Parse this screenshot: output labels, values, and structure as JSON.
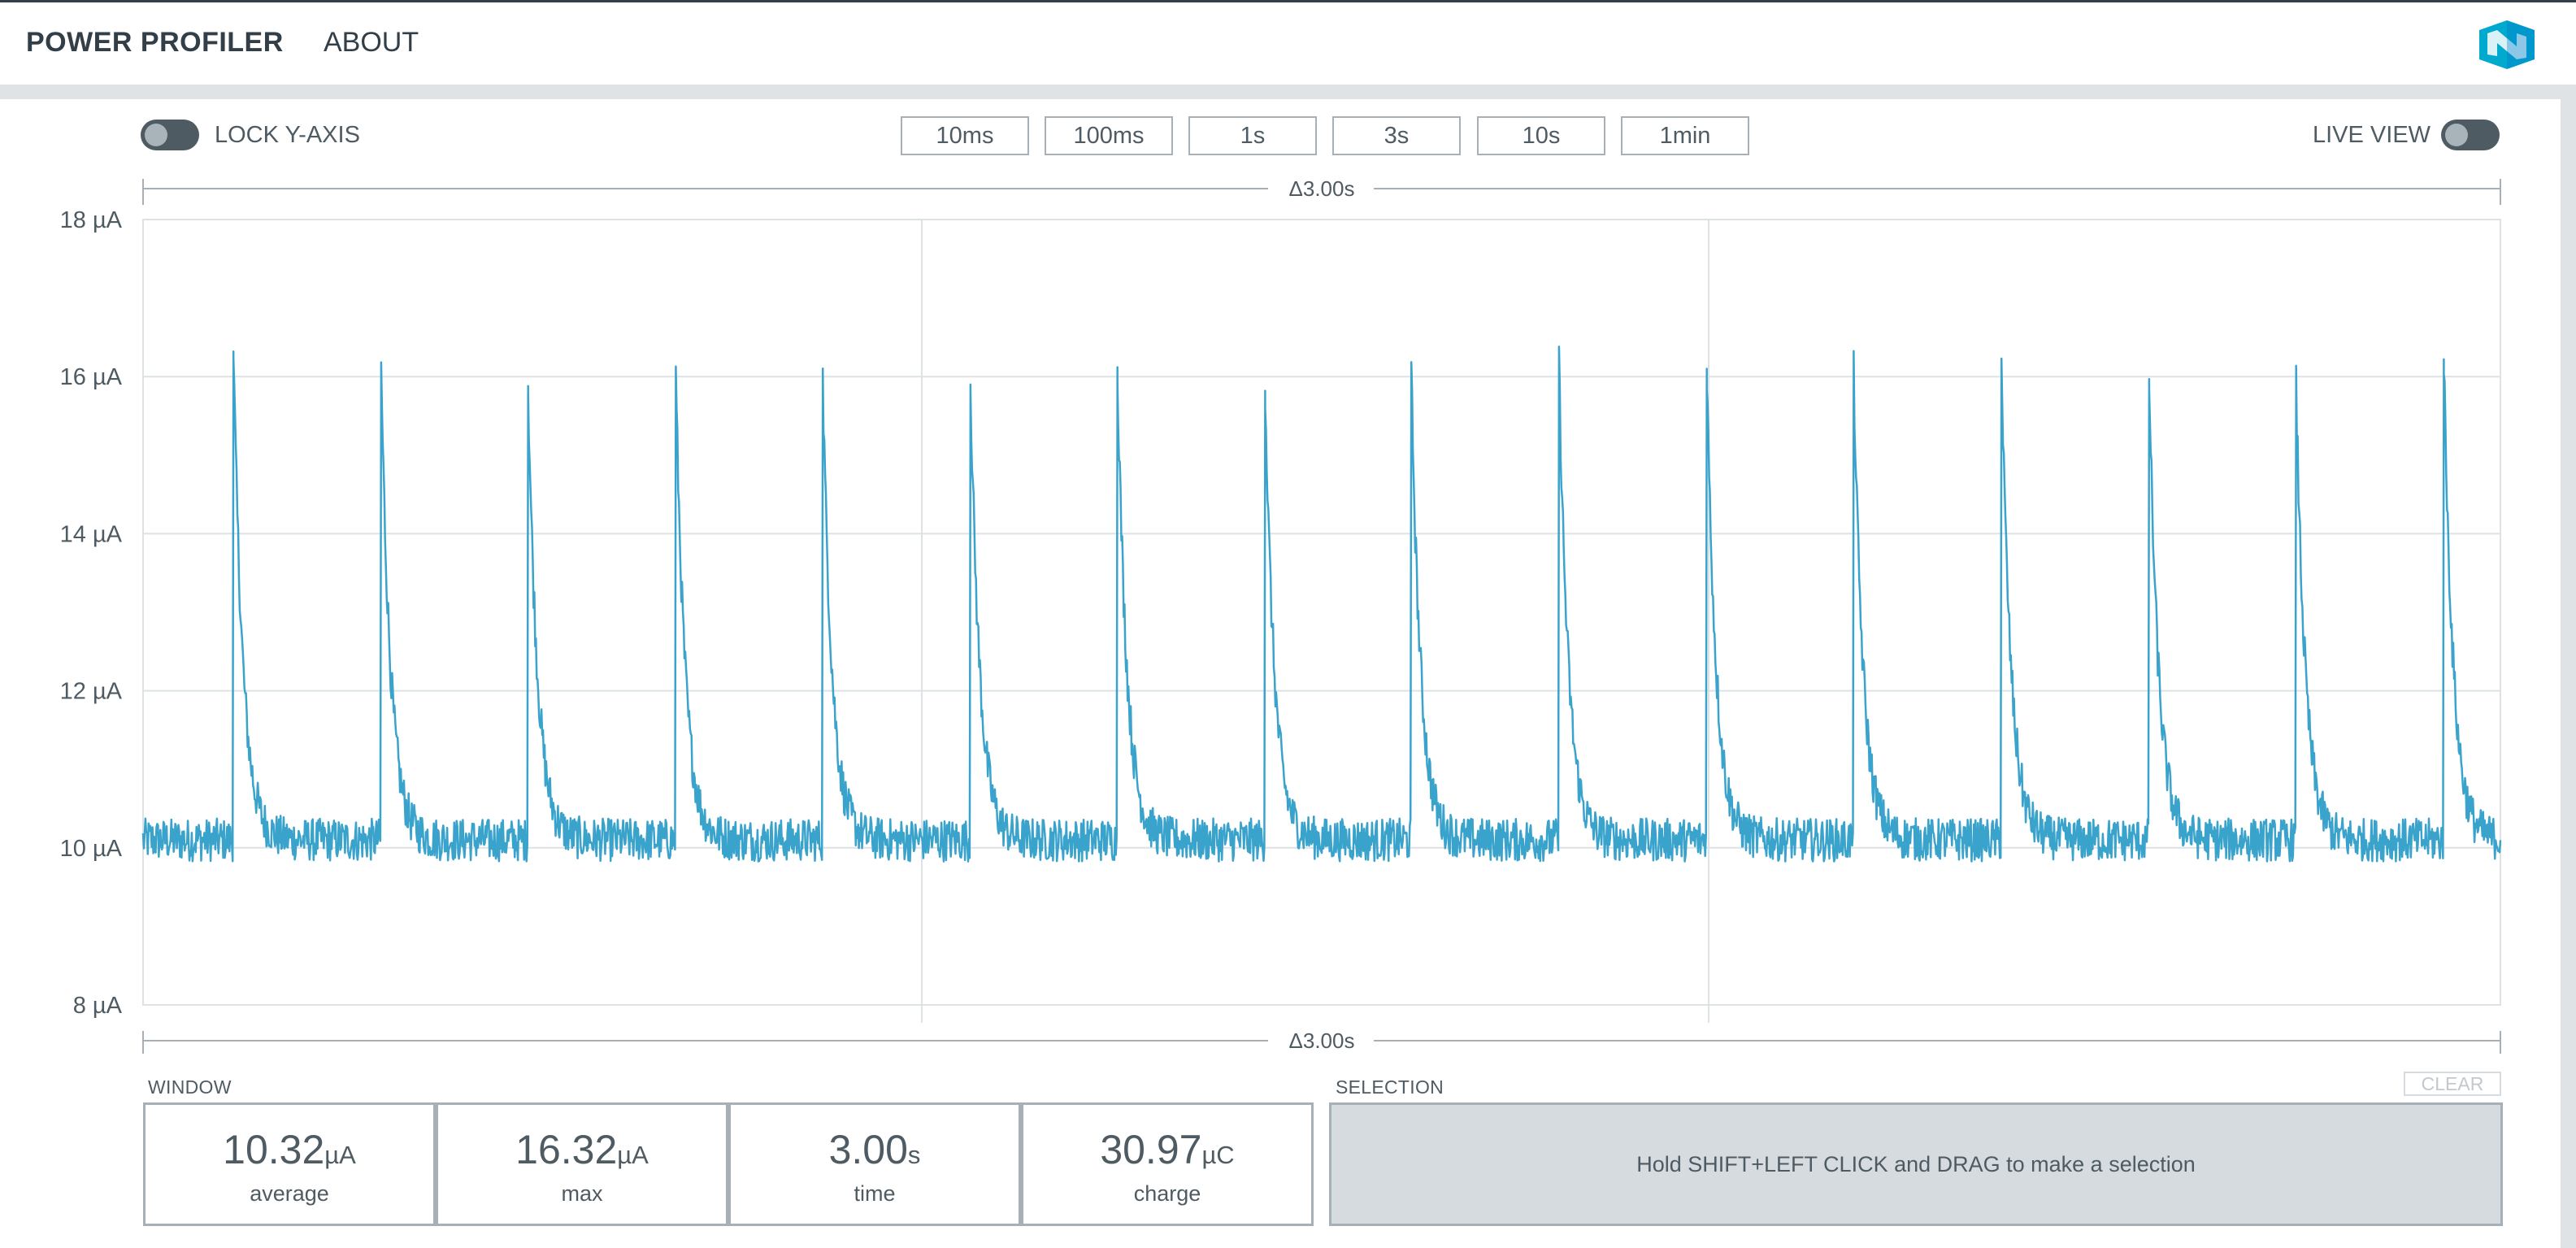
{
  "header": {
    "title": "POWER PROFILER",
    "nav_about": "ABOUT",
    "logo_icon": "nordic-logo-icon"
  },
  "controls": {
    "lock_y_axis": {
      "label": "LOCK Y-AXIS",
      "on": false
    },
    "live_view": {
      "label": "LIVE VIEW",
      "on": false
    },
    "window_buttons": [
      "10ms",
      "100ms",
      "1s",
      "3s",
      "10s",
      "1min"
    ]
  },
  "chart": {
    "delta_label": "Δ3.00s",
    "y_ticks": [
      "18 µA",
      "16 µA",
      "14 µA",
      "12 µA",
      "10 µA",
      "8 µA"
    ],
    "line_color": "#3aa3cc"
  },
  "chart_data": {
    "type": "line",
    "title": "",
    "xlabel": "",
    "ylabel": "",
    "unit": "µA",
    "xlim": [
      0,
      3.0
    ],
    "ylim": [
      8,
      18
    ],
    "grid": true,
    "baseline": 10.1,
    "series": [
      {
        "spike_times": [
          0.115,
          0.303,
          0.49,
          0.678,
          0.865,
          1.053,
          1.24,
          1.428,
          1.614,
          1.802,
          1.99,
          2.177,
          2.365,
          2.553,
          2.74,
          2.928
        ],
        "spike_peaks": [
          16.32,
          16.08,
          15.88,
          16.0,
          15.95,
          15.9,
          16.12,
          15.82,
          16.05,
          16.15,
          16.1,
          16.05,
          16.2,
          15.97,
          15.88,
          16.22
        ]
      }
    ]
  },
  "window_stats": {
    "label": "WINDOW",
    "items": [
      {
        "value": "10.32",
        "unit": "µA",
        "label": "average"
      },
      {
        "value": "16.32",
        "unit": "µA",
        "label": "max"
      },
      {
        "value": "3.00",
        "unit": "s",
        "label": "time"
      },
      {
        "value": "30.97",
        "unit": "µC",
        "label": "charge"
      }
    ]
  },
  "selection": {
    "label": "SELECTION",
    "clear_label": "CLEAR",
    "hint": "Hold SHIFT+LEFT CLICK and DRAG to make a selection"
  }
}
